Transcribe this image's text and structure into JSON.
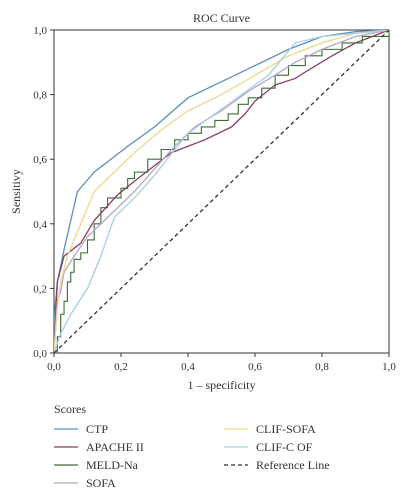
{
  "chart_data": {
    "type": "line",
    "title": "ROC Curve",
    "xlabel": "1 – specificity",
    "ylabel": "Sensitivy",
    "xlim": [
      0,
      1
    ],
    "ylim": [
      0,
      1
    ],
    "xticks": [
      "0,0",
      "0,2",
      "0,4",
      "0,6",
      "0,8",
      "1,0"
    ],
    "yticks": [
      "0,0",
      "0,2",
      "0,4",
      "0,6",
      "0,8",
      "1,0"
    ],
    "grid": false,
    "legend": {
      "title": "Scores",
      "placement": "bottom"
    },
    "series": [
      {
        "name": "CTP",
        "color": "#5b8fb9",
        "style": "solid",
        "points": [
          [
            0,
            0
          ],
          [
            0,
            0.1
          ],
          [
            0.01,
            0.22
          ],
          [
            0.03,
            0.32
          ],
          [
            0.07,
            0.5
          ],
          [
            0.12,
            0.56
          ],
          [
            0.22,
            0.64
          ],
          [
            0.3,
            0.7
          ],
          [
            0.4,
            0.79
          ],
          [
            0.5,
            0.84
          ],
          [
            0.6,
            0.89
          ],
          [
            0.7,
            0.94
          ],
          [
            0.8,
            0.98
          ],
          [
            0.9,
            0.995
          ],
          [
            1,
            1
          ]
        ]
      },
      {
        "name": "APACHE II",
        "color": "#8b3a62",
        "style": "solid",
        "points": [
          [
            0,
            0
          ],
          [
            0.01,
            0.22
          ],
          [
            0.03,
            0.3
          ],
          [
            0.08,
            0.34
          ],
          [
            0.12,
            0.41
          ],
          [
            0.19,
            0.49
          ],
          [
            0.25,
            0.54
          ],
          [
            0.35,
            0.62
          ],
          [
            0.45,
            0.66
          ],
          [
            0.53,
            0.7
          ],
          [
            0.57,
            0.74
          ],
          [
            0.6,
            0.78
          ],
          [
            0.66,
            0.83
          ],
          [
            0.72,
            0.85
          ],
          [
            0.75,
            0.87
          ],
          [
            0.83,
            0.92
          ],
          [
            0.9,
            0.96
          ],
          [
            0.95,
            0.98
          ],
          [
            1,
            1
          ]
        ]
      },
      {
        "name": "MELD-Na",
        "color": "#3d6b35",
        "style": "stairs",
        "points": [
          [
            0,
            0
          ],
          [
            0.01,
            0.05
          ],
          [
            0.02,
            0.12
          ],
          [
            0.03,
            0.16
          ],
          [
            0.04,
            0.22
          ],
          [
            0.05,
            0.25
          ],
          [
            0.06,
            0.29
          ],
          [
            0.08,
            0.31
          ],
          [
            0.1,
            0.35
          ],
          [
            0.12,
            0.4
          ],
          [
            0.14,
            0.45
          ],
          [
            0.16,
            0.48
          ],
          [
            0.2,
            0.51
          ],
          [
            0.22,
            0.54
          ],
          [
            0.24,
            0.56
          ],
          [
            0.28,
            0.6
          ],
          [
            0.32,
            0.63
          ],
          [
            0.36,
            0.66
          ],
          [
            0.4,
            0.68
          ],
          [
            0.44,
            0.7
          ],
          [
            0.48,
            0.72
          ],
          [
            0.52,
            0.74
          ],
          [
            0.55,
            0.77
          ],
          [
            0.58,
            0.79
          ],
          [
            0.62,
            0.82
          ],
          [
            0.66,
            0.86
          ],
          [
            0.7,
            0.89
          ],
          [
            0.75,
            0.92
          ],
          [
            0.8,
            0.94
          ],
          [
            0.86,
            0.96
          ],
          [
            0.92,
            0.98
          ],
          [
            1,
            1
          ]
        ]
      },
      {
        "name": "SOFA",
        "color": "#b2a8c8",
        "style": "solid",
        "points": [
          [
            0,
            0
          ],
          [
            0.01,
            0.16
          ],
          [
            0.02,
            0.19
          ],
          [
            0.03,
            0.25
          ],
          [
            0.06,
            0.3
          ],
          [
            0.1,
            0.36
          ],
          [
            0.14,
            0.4
          ],
          [
            0.18,
            0.44
          ],
          [
            0.24,
            0.5
          ],
          [
            0.3,
            0.57
          ],
          [
            0.36,
            0.64
          ],
          [
            0.42,
            0.7
          ],
          [
            0.5,
            0.75
          ],
          [
            0.58,
            0.81
          ],
          [
            0.66,
            0.86
          ],
          [
            0.72,
            0.9
          ],
          [
            0.8,
            0.94
          ],
          [
            0.9,
            0.98
          ],
          [
            1,
            1
          ]
        ]
      },
      {
        "name": "CLIF-SOFA",
        "color": "#ecd98a",
        "style": "solid",
        "points": [
          [
            0,
            0
          ],
          [
            0.01,
            0.14
          ],
          [
            0.02,
            0.22
          ],
          [
            0.04,
            0.3
          ],
          [
            0.08,
            0.4
          ],
          [
            0.12,
            0.5
          ],
          [
            0.18,
            0.56
          ],
          [
            0.24,
            0.62
          ],
          [
            0.32,
            0.69
          ],
          [
            0.4,
            0.75
          ],
          [
            0.5,
            0.8
          ],
          [
            0.6,
            0.86
          ],
          [
            0.7,
            0.92
          ],
          [
            0.8,
            0.96
          ],
          [
            0.9,
            0.99
          ],
          [
            1,
            1
          ]
        ]
      },
      {
        "name": "CLIF-C OF",
        "color": "#a9cde3",
        "style": "solid",
        "points": [
          [
            0,
            0
          ],
          [
            0.02,
            0.06
          ],
          [
            0.05,
            0.12
          ],
          [
            0.1,
            0.2
          ],
          [
            0.14,
            0.3
          ],
          [
            0.18,
            0.42
          ],
          [
            0.24,
            0.48
          ],
          [
            0.3,
            0.55
          ],
          [
            0.36,
            0.63
          ],
          [
            0.4,
            0.68
          ],
          [
            0.48,
            0.74
          ],
          [
            0.56,
            0.8
          ],
          [
            0.64,
            0.86
          ],
          [
            0.72,
            0.96
          ],
          [
            0.8,
            0.98
          ],
          [
            0.9,
            0.99
          ],
          [
            1,
            1
          ]
        ]
      },
      {
        "name": "Reference Line",
        "color": "#333333",
        "style": "dashed",
        "points": [
          [
            0,
            0
          ],
          [
            1,
            1
          ]
        ]
      }
    ]
  }
}
